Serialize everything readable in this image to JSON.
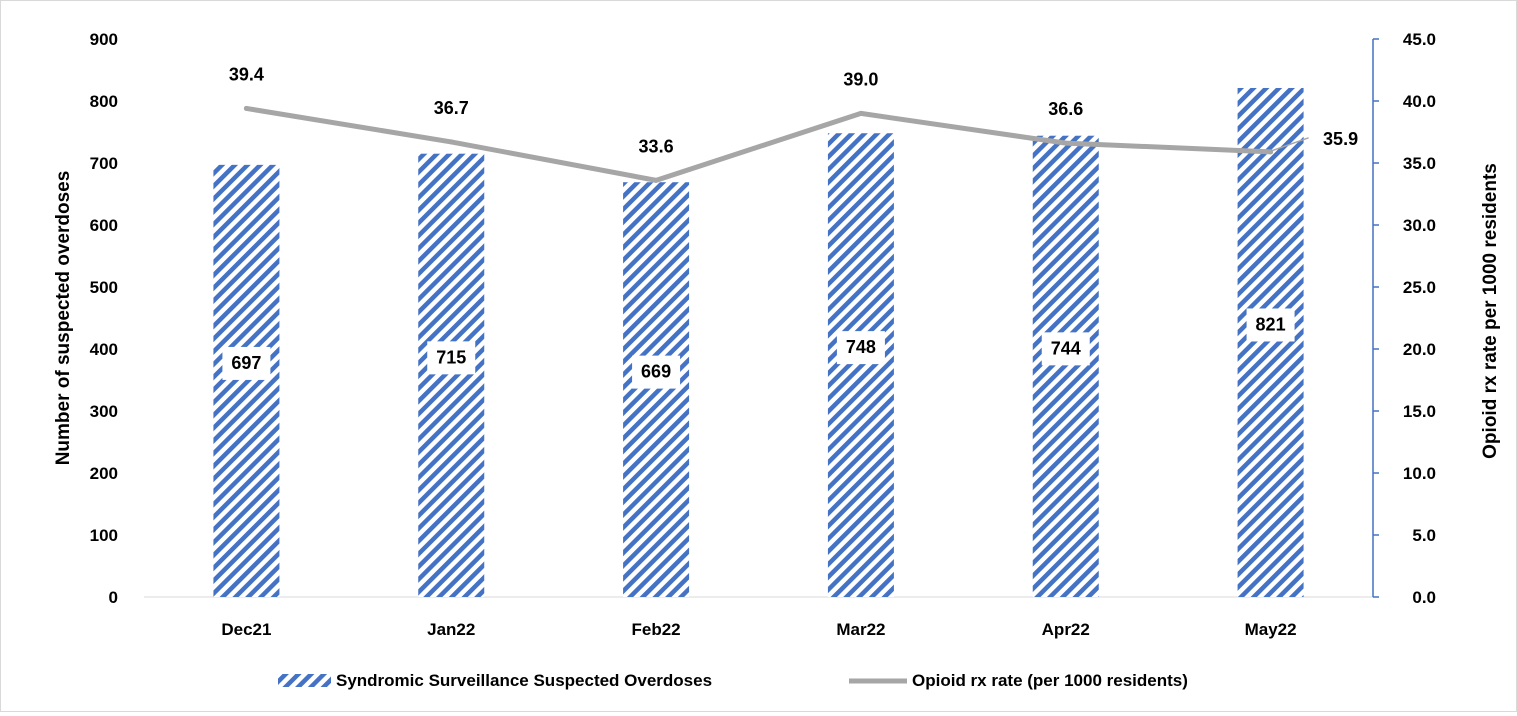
{
  "chart_data": {
    "type": "bar",
    "categories": [
      "Dec21",
      "Jan22",
      "Feb22",
      "Mar22",
      "Apr22",
      "May22"
    ],
    "series": [
      {
        "name": "Syndromic Surveillance Suspected Overdoses",
        "type": "bar",
        "axis": "left",
        "values": [
          697,
          715,
          669,
          748,
          744,
          821
        ],
        "labels": [
          "697",
          "715",
          "669",
          "748",
          "744",
          "821"
        ]
      },
      {
        "name": "Opioid rx rate (per 1000 residents)",
        "type": "line",
        "axis": "right",
        "values": [
          39.4,
          36.7,
          33.6,
          39.0,
          36.6,
          35.9
        ],
        "labels": [
          "39.4",
          "36.7",
          "33.6",
          "39.0",
          "36.6",
          "35.9"
        ]
      }
    ],
    "ylabel": "Number of suspected overdoses",
    "y2label": "Opioid rx rate per 1000 residents",
    "ylim": [
      0,
      900
    ],
    "y2lim": [
      0,
      45
    ],
    "yticks": [
      "0",
      "100",
      "200",
      "300",
      "400",
      "500",
      "600",
      "700",
      "800",
      "900"
    ],
    "y2ticks": [
      "0.0",
      "5.0",
      "10.0",
      "15.0",
      "20.0",
      "25.0",
      "30.0",
      "35.0",
      "40.0",
      "45.0"
    ],
    "grid": false,
    "legend_position": "bottom",
    "colors": {
      "bar_hatch": "#4472c4",
      "line": "#a6a6a6",
      "right_axis": "#4472c4",
      "text": "#000000"
    }
  }
}
